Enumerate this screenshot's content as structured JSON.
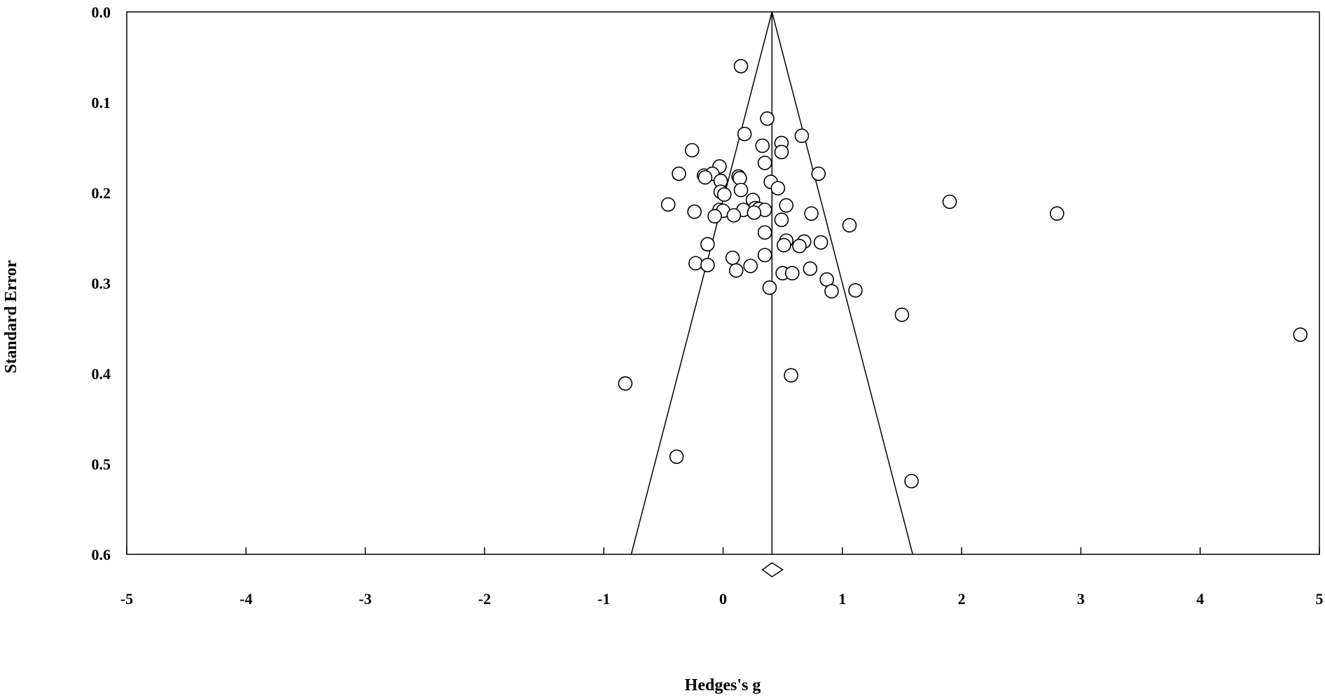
{
  "chart_data": {
    "type": "scatter",
    "subtype": "funnel-plot",
    "xlabel": "Hedges's g",
    "ylabel": "Standard Error",
    "xlim": [
      -5,
      5
    ],
    "ylim": [
      0.6,
      0.0
    ],
    "y_inverted": true,
    "x_ticks": [
      "-5",
      "-4",
      "-3",
      "-2",
      "-1",
      "0",
      "1",
      "2",
      "3",
      "4",
      "5"
    ],
    "y_ticks": [
      "0.0",
      "0.1",
      "0.2",
      "0.3",
      "0.4",
      "0.5",
      "0.6"
    ],
    "pooled_effect": 0.41,
    "pooled_ci": [
      0.33,
      0.5
    ],
    "funnel_bounds_at_max_se": [
      -0.77,
      1.59
    ],
    "grid": false,
    "legend": "none",
    "marker": "open-circle",
    "colors": {
      "stroke": "#000000",
      "background": "#ffffff"
    },
    "points": [
      {
        "x": 0.15,
        "y": 0.06
      },
      {
        "x": 0.37,
        "y": 0.118
      },
      {
        "x": 0.18,
        "y": 0.135
      },
      {
        "x": 0.66,
        "y": 0.137
      },
      {
        "x": 0.49,
        "y": 0.145
      },
      {
        "x": 0.33,
        "y": 0.148
      },
      {
        "x": 0.49,
        "y": 0.155
      },
      {
        "x": -0.26,
        "y": 0.153
      },
      {
        "x": 0.35,
        "y": 0.167
      },
      {
        "x": -0.03,
        "y": 0.171
      },
      {
        "x": 0.8,
        "y": 0.179
      },
      {
        "x": -0.37,
        "y": 0.179
      },
      {
        "x": -0.16,
        "y": 0.181
      },
      {
        "x": -0.09,
        "y": 0.179
      },
      {
        "x": -0.15,
        "y": 0.183
      },
      {
        "x": 0.13,
        "y": 0.182
      },
      {
        "x": 0.14,
        "y": 0.184
      },
      {
        "x": -0.02,
        "y": 0.187
      },
      {
        "x": 0.4,
        "y": 0.188
      },
      {
        "x": 0.46,
        "y": 0.195
      },
      {
        "x": 0.15,
        "y": 0.197
      },
      {
        "x": -0.02,
        "y": 0.199
      },
      {
        "x": 0.01,
        "y": 0.202
      },
      {
        "x": 0.25,
        "y": 0.208
      },
      {
        "x": 1.9,
        "y": 0.21
      },
      {
        "x": -0.46,
        "y": 0.213
      },
      {
        "x": 0.53,
        "y": 0.214
      },
      {
        "x": 0.27,
        "y": 0.217
      },
      {
        "x": 0.3,
        "y": 0.218
      },
      {
        "x": 0.17,
        "y": 0.219
      },
      {
        "x": 0.35,
        "y": 0.219
      },
      {
        "x": -0.03,
        "y": 0.219
      },
      {
        "x": 0.0,
        "y": 0.22
      },
      {
        "x": -0.24,
        "y": 0.221
      },
      {
        "x": 0.26,
        "y": 0.222
      },
      {
        "x": 0.74,
        "y": 0.223
      },
      {
        "x": 2.8,
        "y": 0.223
      },
      {
        "x": -0.07,
        "y": 0.226
      },
      {
        "x": 0.09,
        "y": 0.225
      },
      {
        "x": 0.49,
        "y": 0.23
      },
      {
        "x": 1.06,
        "y": 0.236
      },
      {
        "x": 0.35,
        "y": 0.244
      },
      {
        "x": 0.53,
        "y": 0.253
      },
      {
        "x": 0.68,
        "y": 0.254
      },
      {
        "x": 0.82,
        "y": 0.255
      },
      {
        "x": -0.13,
        "y": 0.257
      },
      {
        "x": 0.51,
        "y": 0.258
      },
      {
        "x": 0.64,
        "y": 0.259
      },
      {
        "x": 0.35,
        "y": 0.269
      },
      {
        "x": 0.08,
        "y": 0.272
      },
      {
        "x": -0.23,
        "y": 0.278
      },
      {
        "x": -0.13,
        "y": 0.28
      },
      {
        "x": 0.23,
        "y": 0.281
      },
      {
        "x": 0.73,
        "y": 0.284
      },
      {
        "x": 0.11,
        "y": 0.286
      },
      {
        "x": 0.5,
        "y": 0.289
      },
      {
        "x": 0.58,
        "y": 0.289
      },
      {
        "x": 0.87,
        "y": 0.296
      },
      {
        "x": 0.39,
        "y": 0.305
      },
      {
        "x": 0.91,
        "y": 0.309
      },
      {
        "x": 1.11,
        "y": 0.308
      },
      {
        "x": 1.5,
        "y": 0.335
      },
      {
        "x": 4.84,
        "y": 0.357
      },
      {
        "x": 0.57,
        "y": 0.402
      },
      {
        "x": -0.82,
        "y": 0.411
      },
      {
        "x": -0.39,
        "y": 0.492
      },
      {
        "x": 1.58,
        "y": 0.519
      }
    ]
  }
}
